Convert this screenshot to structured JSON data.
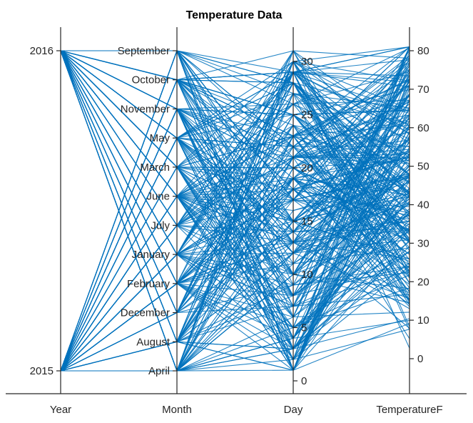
{
  "chart_data": {
    "type": "parallel-coordinates",
    "title": "Temperature Data",
    "line_color": "#0072BD",
    "axes": [
      {
        "name": "Year",
        "kind": "categorical",
        "categories": [
          "2015",
          "2016"
        ]
      },
      {
        "name": "Month",
        "kind": "categorical",
        "categories": [
          "April",
          "August",
          "December",
          "February",
          "January",
          "July",
          "June",
          "March",
          "May",
          "November",
          "October",
          "September"
        ]
      },
      {
        "name": "Day",
        "kind": "numeric",
        "ticks": [
          0,
          5,
          10,
          15,
          20,
          25,
          30
        ],
        "range": [
          1,
          31
        ]
      },
      {
        "name": "TemperatureF",
        "kind": "numeric",
        "ticks": [
          0,
          10,
          20,
          30,
          40,
          50,
          60,
          70,
          80
        ],
        "range": [
          -3,
          81
        ]
      }
    ],
    "series_count": 300
  }
}
